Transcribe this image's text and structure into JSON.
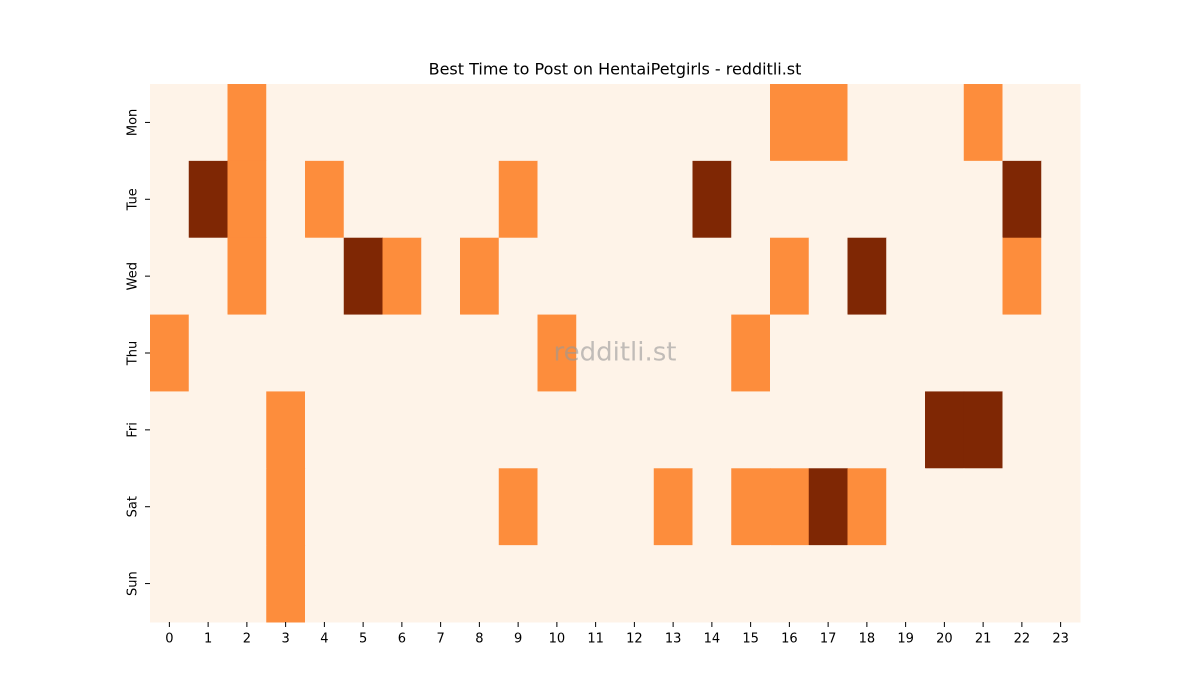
{
  "chart_data": {
    "type": "heatmap",
    "title": "Best Time to Post on HentaiPetgirls - redditli.st",
    "watermark": "redditli.st",
    "x": [
      0,
      1,
      2,
      3,
      4,
      5,
      6,
      7,
      8,
      9,
      10,
      11,
      12,
      13,
      14,
      15,
      16,
      17,
      18,
      19,
      20,
      21,
      22,
      23
    ],
    "y": [
      "Mon",
      "Tue",
      "Wed",
      "Thu",
      "Fri",
      "Sat",
      "Sun"
    ],
    "colors": [
      "#fef3e8",
      "#fd8d3c",
      "#7f2704"
    ],
    "values": [
      [
        0,
        0,
        1,
        0,
        0,
        0,
        0,
        0,
        0,
        0,
        0,
        0,
        0,
        0,
        0,
        0,
        1,
        1,
        0,
        0,
        0,
        1,
        0,
        0
      ],
      [
        0,
        2,
        1,
        0,
        1,
        0,
        0,
        0,
        0,
        1,
        0,
        0,
        0,
        0,
        2,
        0,
        0,
        0,
        0,
        0,
        0,
        0,
        2,
        0
      ],
      [
        0,
        0,
        1,
        0,
        0,
        2,
        1,
        0,
        1,
        0,
        0,
        0,
        0,
        0,
        0,
        0,
        1,
        0,
        2,
        0,
        0,
        0,
        1,
        0
      ],
      [
        1,
        0,
        0,
        0,
        0,
        0,
        0,
        0,
        0,
        0,
        1,
        0,
        0,
        0,
        0,
        1,
        0,
        0,
        0,
        0,
        0,
        0,
        0,
        0
      ],
      [
        0,
        0,
        0,
        1,
        0,
        0,
        0,
        0,
        0,
        0,
        0,
        0,
        0,
        0,
        0,
        0,
        0,
        0,
        0,
        0,
        2,
        2,
        0,
        0
      ],
      [
        0,
        0,
        0,
        1,
        0,
        0,
        0,
        0,
        0,
        1,
        0,
        0,
        0,
        1,
        0,
        1,
        1,
        2,
        1,
        0,
        0,
        0,
        0,
        0
      ],
      [
        0,
        0,
        0,
        1,
        0,
        0,
        0,
        0,
        0,
        0,
        0,
        0,
        0,
        0,
        0,
        0,
        0,
        0,
        0,
        0,
        0,
        0,
        0,
        0
      ]
    ]
  }
}
